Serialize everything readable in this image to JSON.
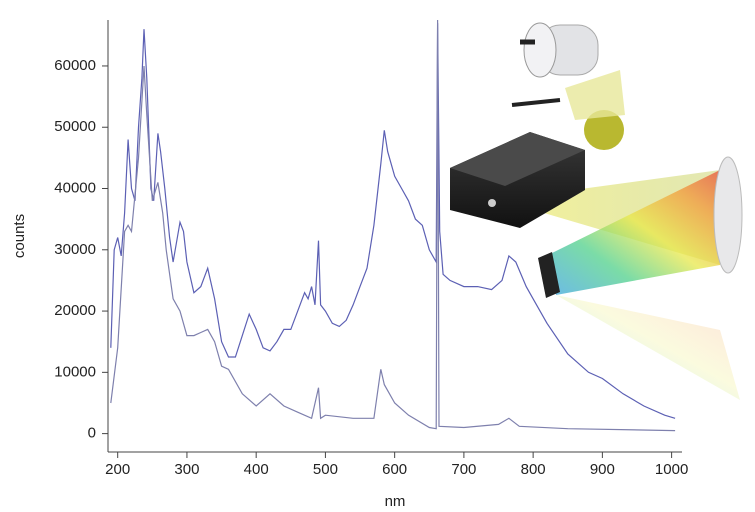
{
  "chart_data": {
    "type": "line",
    "x_label": "nm",
    "y_label": "counts",
    "xlim": [
      186,
      1015
    ],
    "ylim": [
      -3000,
      67500
    ],
    "xticks": [
      200,
      300,
      400,
      500,
      600,
      700,
      800,
      900,
      1000
    ],
    "yticks": [
      0,
      10000,
      20000,
      30000,
      40000,
      50000,
      60000
    ],
    "series": [
      {
        "color": "#5c60b4",
        "x": [
          190,
          195,
          200,
          205,
          210,
          215,
          220,
          225,
          230,
          235,
          238,
          242,
          248,
          252,
          258,
          262,
          268,
          275,
          280,
          290,
          295,
          300,
          310,
          320,
          330,
          340,
          350,
          360,
          370,
          380,
          390,
          400,
          410,
          420,
          430,
          440,
          450,
          460,
          470,
          475,
          480,
          485,
          490,
          493,
          500,
          510,
          520,
          530,
          540,
          550,
          560,
          570,
          580,
          585,
          590,
          600,
          610,
          620,
          630,
          640,
          650,
          660,
          662,
          665,
          670,
          680,
          700,
          720,
          740,
          755,
          765,
          775,
          790,
          800,
          820,
          850,
          880,
          900,
          930,
          960,
          990,
          1005
        ],
        "values": [
          14000,
          30000,
          32000,
          29000,
          36000,
          48000,
          40000,
          38000,
          50000,
          58000,
          66000,
          58000,
          40000,
          38000,
          49000,
          46000,
          40000,
          32000,
          28000,
          34500,
          33000,
          28000,
          23000,
          24000,
          27000,
          22000,
          15000,
          12500,
          12500,
          16000,
          19500,
          17000,
          14000,
          13500,
          15000,
          17000,
          17000,
          20000,
          23000,
          22000,
          24000,
          21000,
          31500,
          21000,
          20000,
          18000,
          17500,
          18500,
          21000,
          24000,
          27000,
          34000,
          44000,
          49500,
          46000,
          42000,
          40000,
          38000,
          35000,
          34000,
          30000,
          28000,
          67000,
          33000,
          26000,
          25000,
          24000,
          24000,
          23500,
          25000,
          29000,
          28000,
          24000,
          22000,
          18000,
          13000,
          10000,
          9000,
          6500,
          4500,
          3000,
          2500
        ]
      },
      {
        "color": "#7e80ad",
        "x": [
          190,
          200,
          210,
          215,
          220,
          230,
          238,
          242,
          250,
          258,
          265,
          270,
          280,
          290,
          300,
          310,
          320,
          330,
          340,
          350,
          360,
          380,
          400,
          420,
          440,
          460,
          480,
          490,
          493,
          500,
          540,
          570,
          580,
          585,
          600,
          620,
          650,
          660,
          662,
          664,
          700,
          750,
          765,
          780,
          850,
          1005
        ],
        "values": [
          5000,
          14000,
          33000,
          34000,
          33000,
          45000,
          60000,
          52000,
          38000,
          41000,
          36000,
          30000,
          22000,
          20000,
          16000,
          16000,
          16500,
          17000,
          15000,
          11000,
          10500,
          6500,
          4500,
          6500,
          4500,
          3500,
          2500,
          7500,
          2500,
          3000,
          2500,
          2500,
          10500,
          8000,
          5000,
          3000,
          1000,
          800,
          67500,
          1200,
          1000,
          1500,
          2500,
          1200,
          800,
          500
        ]
      }
    ]
  }
}
